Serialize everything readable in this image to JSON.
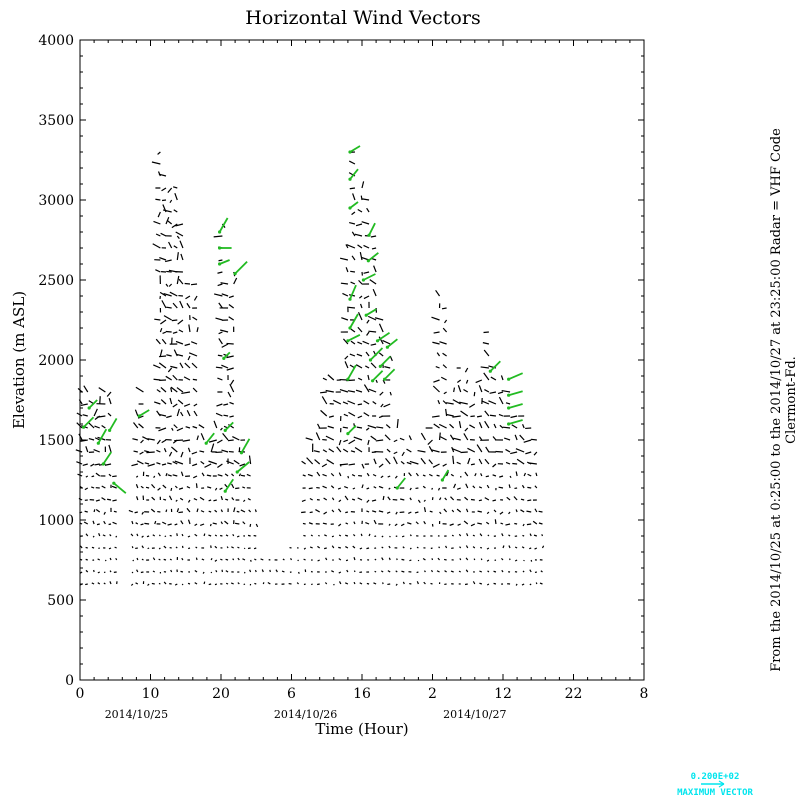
{
  "colors": {
    "normal_vector": "#000000",
    "highlight_vector": "#22bb22",
    "legend": "#00e5ee"
  },
  "chart_data": {
    "type": "vector",
    "title": "Horizontal Wind Vectors",
    "xlabel": "Time (Hour)",
    "ylabel": "Elevation (m ASL)",
    "ylim": [
      0,
      4000
    ],
    "yticks": [
      "0",
      "500",
      "1000",
      "1500",
      "2000",
      "2500",
      "3000",
      "3500",
      "4000"
    ],
    "xlim_hours": [
      0,
      80
    ],
    "xticks": [
      "0",
      "10",
      "20",
      "6",
      "16",
      "2",
      "12",
      "22",
      "8"
    ],
    "date_labels": [
      "2014/10/25",
      "2014/10/26",
      "2014/10/27"
    ],
    "side_note_line1": "From the 2014/10/25 at  0:25:00 to the 2014/10/27 at 23:25:00 Radar = VHF Code",
    "side_note_line2": "Clermont-Fd.",
    "max_vector_value": "0.200E+02",
    "max_vector_label": "MAXIMUM VECTOR",
    "profiles": [
      {
        "t": 0.3,
        "top": 1800
      },
      {
        "t": 1.1,
        "top": 1820
      },
      {
        "t": 2.0,
        "top": 1780
      },
      {
        "t": 2.8,
        "top": 1760
      },
      {
        "t": 3.6,
        "top": 1800
      },
      {
        "t": 4.4,
        "top": 1820
      },
      {
        "t": 5.2,
        "top": 1300
      },
      {
        "t": 7.5,
        "top": 1100
      },
      {
        "t": 8.2,
        "top": 1700
      },
      {
        "t": 9.0,
        "top": 1800
      },
      {
        "t": 9.8,
        "top": 1560
      },
      {
        "t": 10.6,
        "top": 1560
      },
      {
        "t": 11.4,
        "top": 3300
      },
      {
        "t": 12.2,
        "top": 3200
      },
      {
        "t": 13.0,
        "top": 3100
      },
      {
        "t": 13.8,
        "top": 3100
      },
      {
        "t": 14.6,
        "top": 2900
      },
      {
        "t": 15.6,
        "top": 2500
      },
      {
        "t": 16.6,
        "top": 2500
      },
      {
        "t": 17.6,
        "top": 1600
      },
      {
        "t": 18.6,
        "top": 1450
      },
      {
        "t": 19.4,
        "top": 1600
      },
      {
        "t": 20.2,
        "top": 2900
      },
      {
        "t": 21.0,
        "top": 2500
      },
      {
        "t": 21.8,
        "top": 2600
      },
      {
        "t": 22.6,
        "top": 1550
      },
      {
        "t": 23.4,
        "top": 1500
      },
      {
        "t": 24.2,
        "top": 1400
      },
      {
        "t": 25.0,
        "top": 1100
      },
      {
        "t": 26.0,
        "top": 760
      },
      {
        "t": 27.0,
        "top": 760
      },
      {
        "t": 28.0,
        "top": 770
      },
      {
        "t": 29.0,
        "top": 780
      },
      {
        "t": 30.0,
        "top": 830
      },
      {
        "t": 31.0,
        "top": 860
      },
      {
        "t": 32.0,
        "top": 1400
      },
      {
        "t": 33.0,
        "top": 1560
      },
      {
        "t": 34.0,
        "top": 1600
      },
      {
        "t": 35.0,
        "top": 1900
      },
      {
        "t": 36.0,
        "top": 1900
      },
      {
        "t": 37.0,
        "top": 1900
      },
      {
        "t": 38.0,
        "top": 2700
      },
      {
        "t": 39.0,
        "top": 3350
      },
      {
        "t": 40.0,
        "top": 3100
      },
      {
        "t": 41.0,
        "top": 3000
      },
      {
        "t": 42.0,
        "top": 2800
      },
      {
        "t": 43.0,
        "top": 2300
      },
      {
        "t": 44.0,
        "top": 2150
      },
      {
        "t": 45.0,
        "top": 1600
      },
      {
        "t": 46.0,
        "top": 1560
      },
      {
        "t": 47.0,
        "top": 1500
      },
      {
        "t": 48.0,
        "top": 1400
      },
      {
        "t": 49.0,
        "top": 1500
      },
      {
        "t": 50.0,
        "top": 1600
      },
      {
        "t": 51.0,
        "top": 2400
      },
      {
        "t": 52.0,
        "top": 2350
      },
      {
        "t": 53.0,
        "top": 1800
      },
      {
        "t": 54.0,
        "top": 2000
      },
      {
        "t": 55.0,
        "top": 2000
      },
      {
        "t": 56.0,
        "top": 1800
      },
      {
        "t": 57.0,
        "top": 1900
      },
      {
        "t": 58.0,
        "top": 2200
      },
      {
        "t": 59.0,
        "top": 2000
      },
      {
        "t": 60.0,
        "top": 1900
      },
      {
        "t": 61.0,
        "top": 1800
      },
      {
        "t": 62.0,
        "top": 1700
      },
      {
        "t": 63.0,
        "top": 1650
      },
      {
        "t": 64.0,
        "top": 1600
      },
      {
        "t": 64.8,
        "top": 1500
      },
      {
        "t": 65.6,
        "top": 1100
      }
    ],
    "highlights": [
      {
        "t": 0.5,
        "h": 1580,
        "dx": 10,
        "dy": -10
      },
      {
        "t": 1.3,
        "h": 1700,
        "dx": 8,
        "dy": -8
      },
      {
        "t": 2.6,
        "h": 1480,
        "dx": 8,
        "dy": -14
      },
      {
        "t": 3.3,
        "h": 1350,
        "dx": 8,
        "dy": -12
      },
      {
        "t": 4.2,
        "h": 1560,
        "dx": 7,
        "dy": -12
      },
      {
        "t": 4.8,
        "h": 1230,
        "dx": 12,
        "dy": 10
      },
      {
        "t": 8.4,
        "h": 1650,
        "dx": 10,
        "dy": -6
      },
      {
        "t": 17.9,
        "h": 1480,
        "dx": 8,
        "dy": -10
      },
      {
        "t": 19.8,
        "h": 2800,
        "dx": 8,
        "dy": -14
      },
      {
        "t": 19.8,
        "h": 2700,
        "dx": 12,
        "dy": 0
      },
      {
        "t": 19.8,
        "h": 2600,
        "dx": 10,
        "dy": -4
      },
      {
        "t": 20.4,
        "h": 2010,
        "dx": 6,
        "dy": -6
      },
      {
        "t": 20.6,
        "h": 1560,
        "dx": 8,
        "dy": -8
      },
      {
        "t": 20.6,
        "h": 1180,
        "dx": 8,
        "dy": -12
      },
      {
        "t": 22.0,
        "h": 2540,
        "dx": 12,
        "dy": -12
      },
      {
        "t": 22.3,
        "h": 1300,
        "dx": 12,
        "dy": -10
      },
      {
        "t": 22.9,
        "h": 1420,
        "dx": 8,
        "dy": -14
      },
      {
        "t": 38.3,
        "h": 3300,
        "dx": 10,
        "dy": -6
      },
      {
        "t": 38.3,
        "h": 3130,
        "dx": 8,
        "dy": -10
      },
      {
        "t": 38.3,
        "h": 2950,
        "dx": 8,
        "dy": -6
      },
      {
        "t": 38.3,
        "h": 2380,
        "dx": 6,
        "dy": -14
      },
      {
        "t": 38.3,
        "h": 2200,
        "dx": 8,
        "dy": -14
      },
      {
        "t": 38.0,
        "h": 2120,
        "dx": 12,
        "dy": -6
      },
      {
        "t": 38.0,
        "h": 1880,
        "dx": 8,
        "dy": -14
      },
      {
        "t": 38.0,
        "h": 1540,
        "dx": 8,
        "dy": -8
      },
      {
        "t": 40.2,
        "h": 2500,
        "dx": 12,
        "dy": -6
      },
      {
        "t": 40.6,
        "h": 2280,
        "dx": 10,
        "dy": -6
      },
      {
        "t": 40.9,
        "h": 2620,
        "dx": 10,
        "dy": -8
      },
      {
        "t": 41.0,
        "h": 2780,
        "dx": 6,
        "dy": -12
      },
      {
        "t": 41.2,
        "h": 2000,
        "dx": 12,
        "dy": -12
      },
      {
        "t": 41.5,
        "h": 1870,
        "dx": 10,
        "dy": -10
      },
      {
        "t": 42.2,
        "h": 2120,
        "dx": 12,
        "dy": -8
      },
      {
        "t": 42.6,
        "h": 1960,
        "dx": 10,
        "dy": -10
      },
      {
        "t": 43.2,
        "h": 1880,
        "dx": 10,
        "dy": -10
      },
      {
        "t": 43.6,
        "h": 2080,
        "dx": 10,
        "dy": -8
      },
      {
        "t": 45.0,
        "h": 1200,
        "dx": 8,
        "dy": -10
      },
      {
        "t": 51.4,
        "h": 1250,
        "dx": 6,
        "dy": -10
      },
      {
        "t": 58.2,
        "h": 1930,
        "dx": 10,
        "dy": -10
      },
      {
        "t": 60.8,
        "h": 1880,
        "dx": 14,
        "dy": -6
      },
      {
        "t": 60.8,
        "h": 1780,
        "dx": 14,
        "dy": -4
      },
      {
        "t": 60.8,
        "h": 1700,
        "dx": 14,
        "dy": -4
      },
      {
        "t": 60.8,
        "h": 1600,
        "dx": 14,
        "dy": -4
      }
    ]
  }
}
